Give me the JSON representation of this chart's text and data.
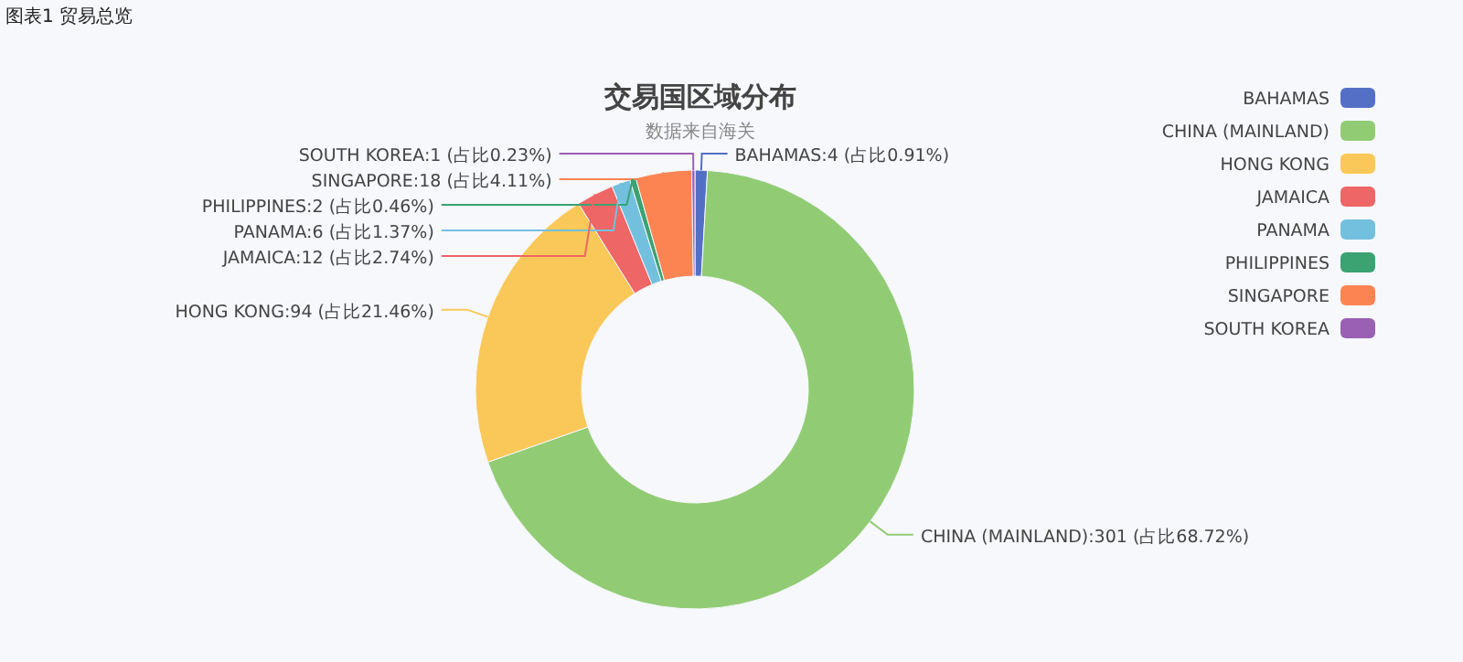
{
  "chart_data": {
    "type": "donut",
    "title": "交易国区域分布",
    "subtitle": "数据来自海关",
    "annotations": [
      "图表1 贸易总览"
    ],
    "categories": [
      "BAHAMAS",
      "CHINA (MAINLAND)",
      "HONG KONG",
      "JAMAICA",
      "PANAMA",
      "PHILIPPINES",
      "SINGAPORE",
      "SOUTH KOREA"
    ],
    "values": [
      4,
      301,
      94,
      12,
      6,
      2,
      18,
      1
    ],
    "colors": [
      "#5470c6",
      "#91cc75",
      "#fac858",
      "#ee6666",
      "#73c0de",
      "#3ba272",
      "#fc8452",
      "#9a60b4"
    ],
    "value_labels": [
      "BAHAMAS:4 (占比0.91%)",
      "CHINA (MAINLAND):301 (占比68.72%)",
      "HONG KONG:94 (占比21.46%)",
      "JAMAICA:12 (占比2.74%)",
      "PANAMA:6 (占比1.37%)",
      "PHILIPPINES:2 (占比0.46%)",
      "SINGAPORE:18 (占比4.11%)",
      "SOUTH KOREA:1 (占比0.23%)"
    ],
    "legend": "top right"
  }
}
